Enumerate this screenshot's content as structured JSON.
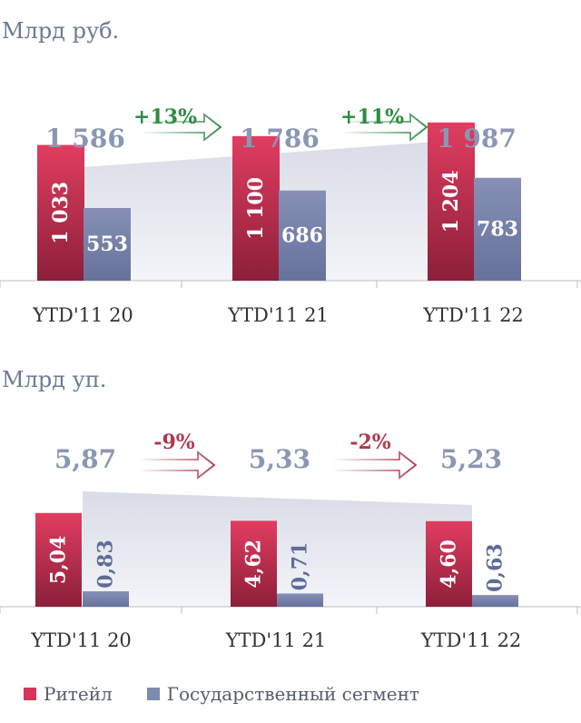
{
  "colors": {
    "retail": "#d63658",
    "retail_dark": "#8c1f3a",
    "gov": "#7f8ab1",
    "gov_dark": "#5f6c98",
    "total_area": "#e4e6ee",
    "total_text": "#8a97b3",
    "growth_positive": "#2e8b44",
    "growth_negative": "#b0394e",
    "axis": "#bdbdbd"
  },
  "legend": {
    "retail": "Ритейл",
    "gov": "Государственный сегмент"
  },
  "chart_data": [
    {
      "type": "bar",
      "ylabel": "Млрд руб.",
      "categories": [
        "YTD'11 20",
        "YTD'11 21",
        "YTD'11 22"
      ],
      "series": [
        {
          "name": "Ритейл",
          "values": [
            1033,
            1100,
            1204
          ],
          "labels": [
            "1 033",
            "1 100",
            "1 204"
          ]
        },
        {
          "name": "Государственный сегмент",
          "values": [
            553,
            686,
            783
          ],
          "labels": [
            "553",
            "686",
            "783"
          ]
        }
      ],
      "totals": [
        1586,
        1786,
        1987
      ],
      "total_labels": [
        "1 586",
        "1 786",
        "1 987"
      ],
      "growth": [
        "+13%",
        "+11%"
      ],
      "ylim": [
        0,
        1987
      ]
    },
    {
      "type": "bar",
      "ylabel": "Млрд уп.",
      "categories": [
        "YTD'11 20",
        "YTD'11 21",
        "YTD'11 22"
      ],
      "series": [
        {
          "name": "Ритейл",
          "values": [
            5.04,
            4.62,
            4.6
          ],
          "labels": [
            "5,04",
            "4,62",
            "4,60"
          ]
        },
        {
          "name": "Государственный сегмент",
          "values": [
            0.83,
            0.71,
            0.63
          ],
          "labels": [
            "0,83",
            "0,71",
            "0,63"
          ]
        }
      ],
      "totals": [
        5.87,
        5.33,
        5.23
      ],
      "total_labels": [
        "5,87",
        "5,33",
        "5,23"
      ],
      "growth": [
        "-9%",
        "-2%"
      ],
      "ylim": [
        0,
        5.87
      ]
    }
  ]
}
